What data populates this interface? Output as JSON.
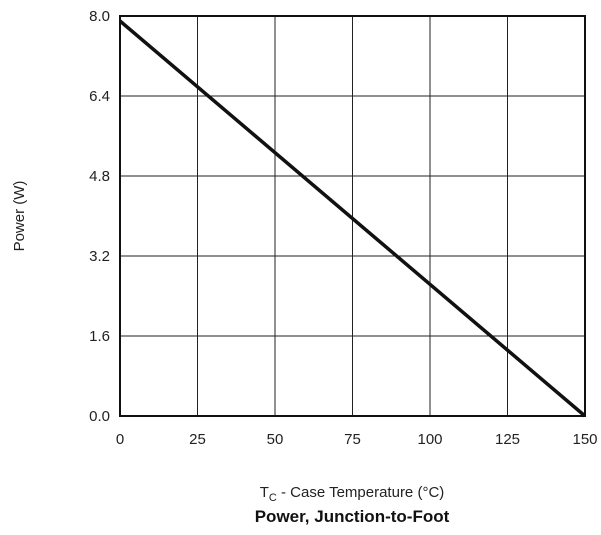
{
  "chart_data": {
    "type": "line",
    "title": "Power, Junction-to-Foot",
    "xlabel_main": "T",
    "xlabel_sub": "C",
    "xlabel_rest": " - Case Temperature (°C)",
    "ylabel": "Power  (W)",
    "xlim": [
      0,
      150
    ],
    "ylim": [
      0,
      8
    ],
    "x_ticks": [
      0,
      25,
      50,
      75,
      100,
      125,
      150
    ],
    "y_ticks": [
      "0.0",
      "1.6",
      "3.2",
      "4.8",
      "6.4",
      "8.0"
    ],
    "grid": true,
    "series": [
      {
        "x": [
          0,
          150
        ],
        "y": [
          7.9,
          0
        ]
      }
    ]
  }
}
